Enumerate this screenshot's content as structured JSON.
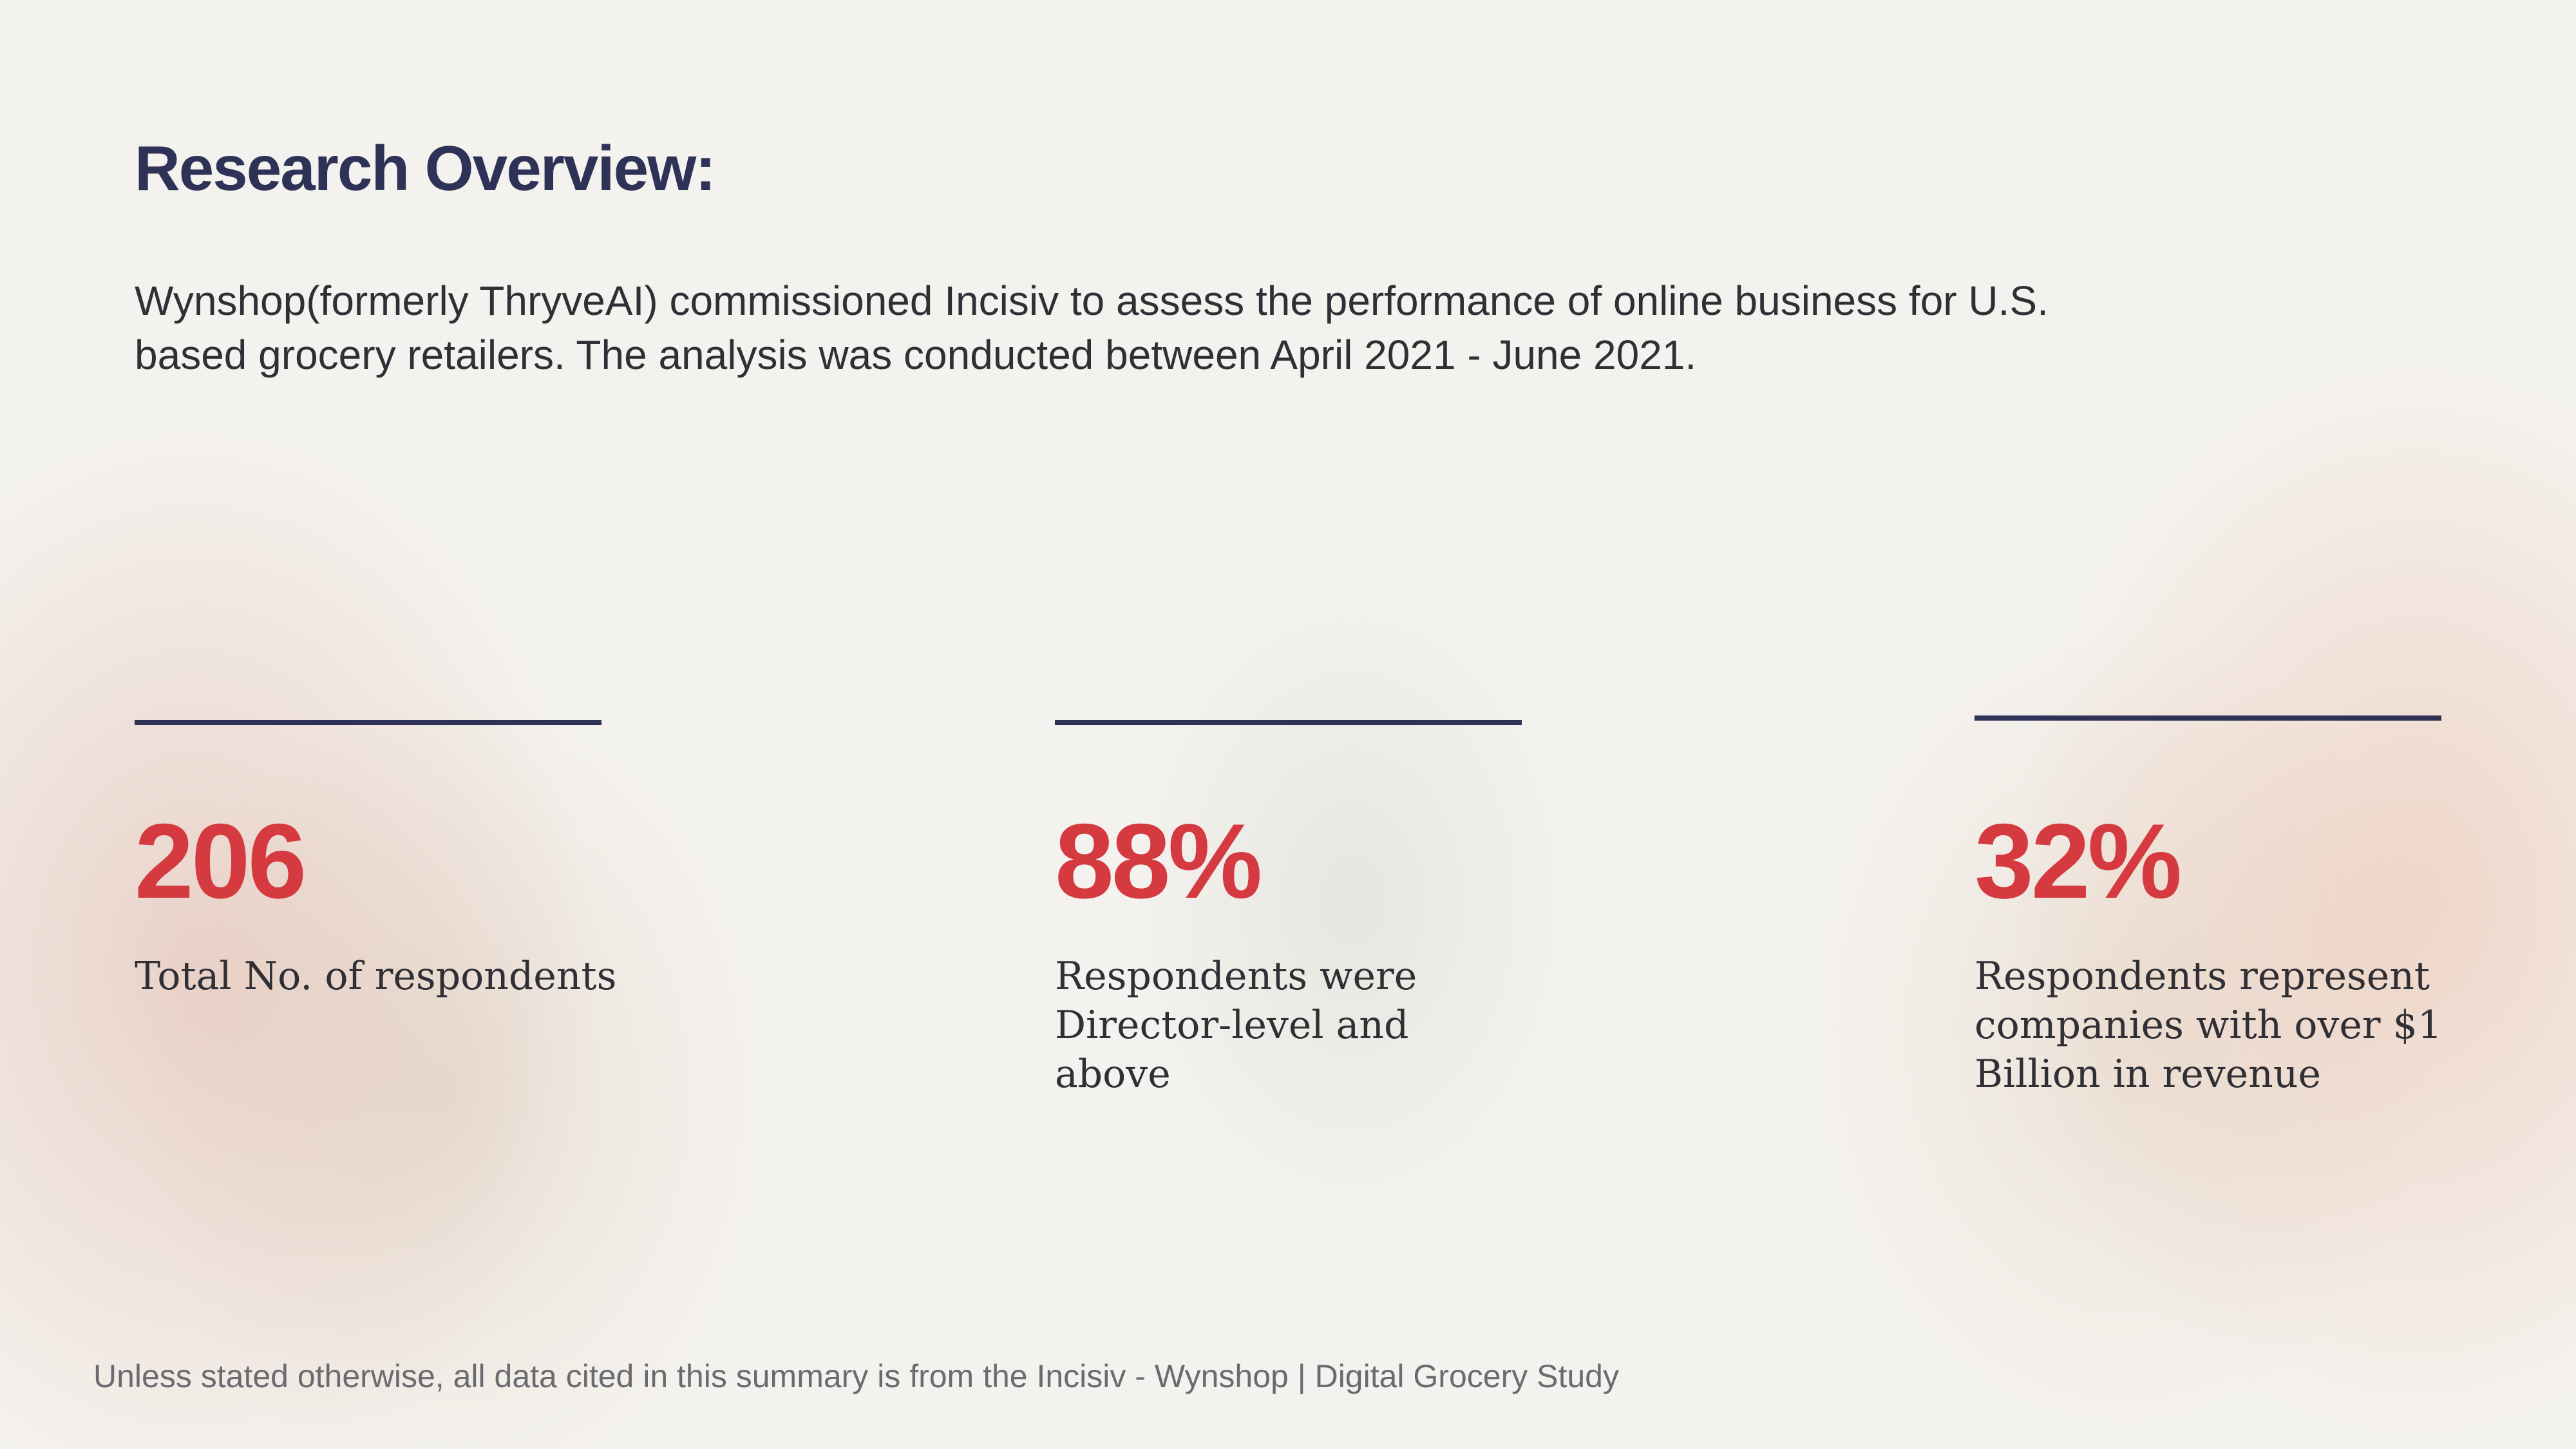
{
  "title": "Research Overview:",
  "intro": [
    "Wynshop(formerly ThryveAI) commissioned Incisiv to assess the performance of online business for U.S.",
    "based grocery retailers. The analysis was conducted between April 2021 - June 2021."
  ],
  "stats": [
    {
      "value": "206",
      "description": [
        "Total No. of respondents"
      ]
    },
    {
      "value": "88%",
      "description": [
        "Respondents were",
        "Director-level and",
        "above"
      ]
    },
    {
      "value": "32%",
      "description": [
        "Respondents represent",
        "companies with over $1",
        "Billion in revenue"
      ]
    }
  ],
  "footer": "Unless stated otherwise, all data cited in this summary is from the Incisiv - Wynshop | Digital Grocery Study"
}
